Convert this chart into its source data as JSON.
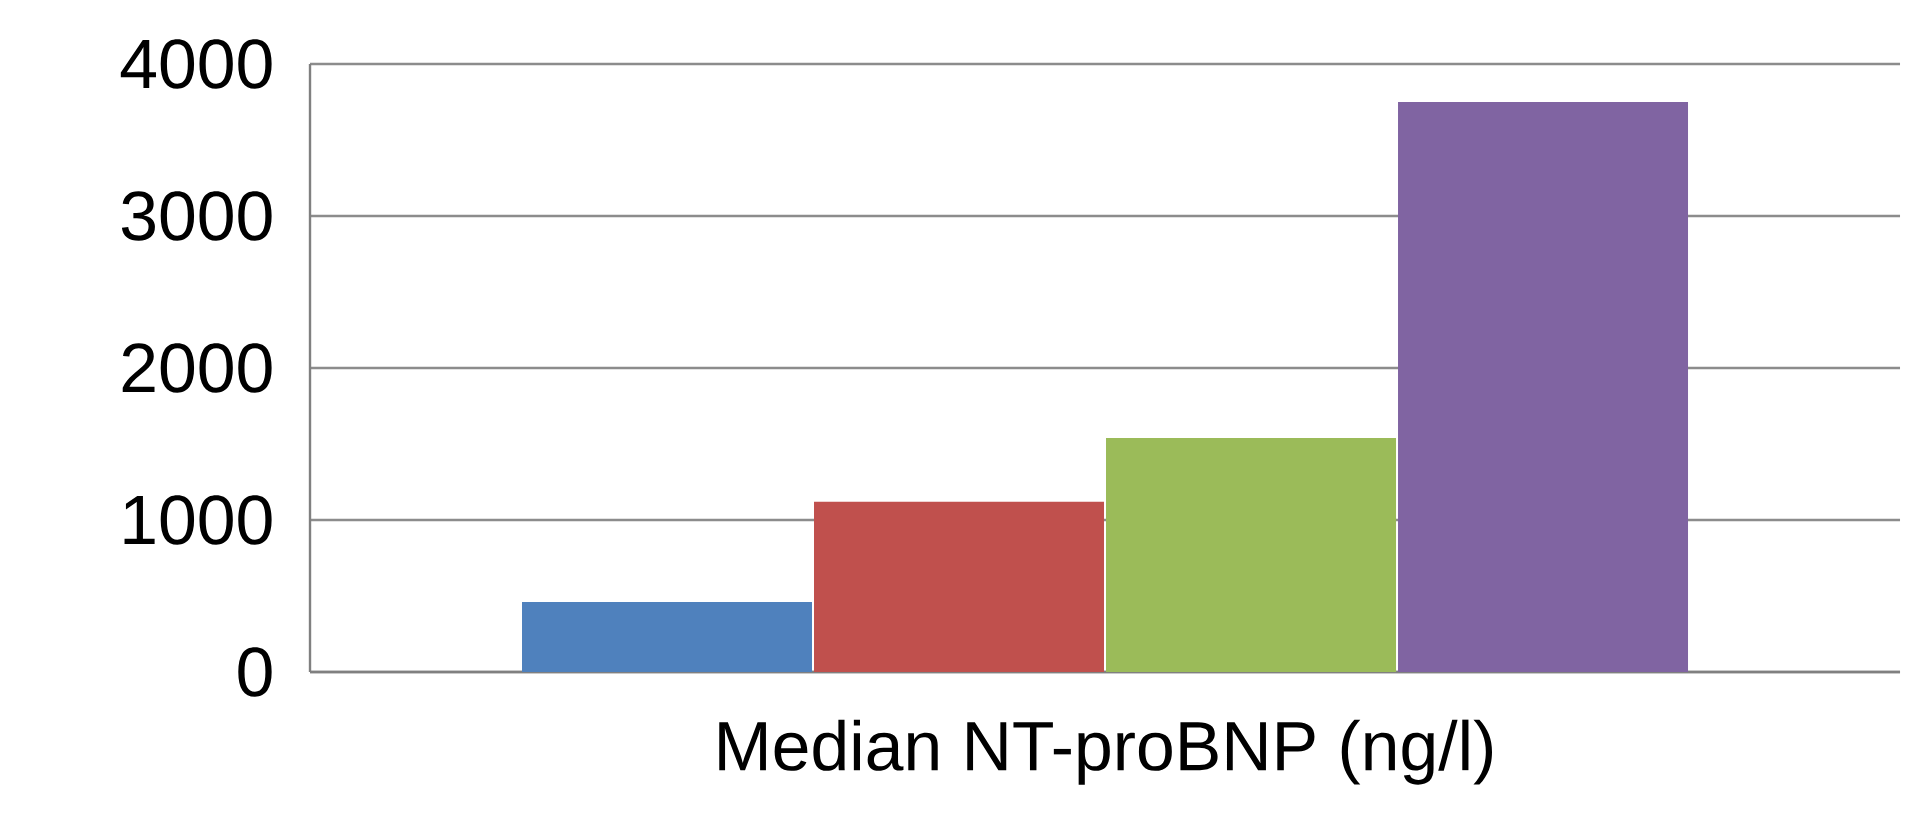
{
  "chart_data": {
    "type": "bar",
    "categories": [
      "Median NT-proBNP (ng/l)"
    ],
    "series": [
      {
        "color": "#4f81bd",
        "values": [
          460
        ]
      },
      {
        "color": "#c0504d",
        "values": [
          1120
        ]
      },
      {
        "color": "#9bbb59",
        "values": [
          1540
        ]
      },
      {
        "color": "#8064a2",
        "values": [
          3750
        ]
      }
    ],
    "ylim": [
      0,
      4000
    ],
    "yticks": [
      0,
      1000,
      2000,
      3000,
      4000
    ],
    "grid": "y"
  }
}
